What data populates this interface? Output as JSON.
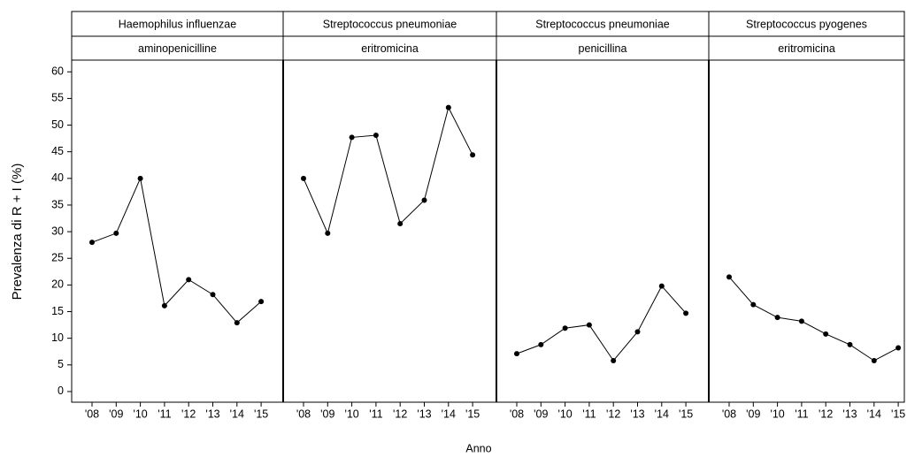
{
  "chart_data": [
    {
      "type": "line",
      "title": "Haemophilus influenzae",
      "subtitle": "aminopenicilline",
      "y_label": "Prevalenza di R + I (%)",
      "x_label": "Anno",
      "categories": [
        "'08",
        "'09",
        "'10",
        "'11",
        "'12",
        "'13",
        "'14",
        "'15"
      ],
      "values": [
        28,
        29.7,
        40,
        16.1,
        21,
        18.2,
        12.9,
        16.9
      ],
      "ylim": [
        -2,
        62.2
      ],
      "yticks": [
        0,
        5,
        10,
        15,
        20,
        25,
        30,
        35,
        40,
        45,
        50,
        55,
        60
      ],
      "color": "#000000"
    },
    {
      "type": "line",
      "title": "Streptococcus pneumoniae",
      "subtitle": "eritromicina",
      "categories": [
        "'08",
        "'09",
        "'10",
        "'11",
        "'12",
        "'13",
        "'14",
        "'15"
      ],
      "values": [
        40,
        29.7,
        47.7,
        48.1,
        31.5,
        35.9,
        53.3,
        44.4
      ],
      "color": "#000000"
    },
    {
      "type": "line",
      "title": "Streptococcus pneumoniae",
      "subtitle": "penicillina",
      "categories": [
        "'08",
        "'09",
        "'10",
        "'11",
        "'12",
        "'13",
        "'14",
        "'15"
      ],
      "values": [
        7.1,
        8.8,
        11.9,
        12.5,
        5.8,
        11.2,
        19.8,
        14.7
      ],
      "color": "#000000"
    },
    {
      "type": "line",
      "title": "Streptococcus pyogenes",
      "subtitle": "eritromicina",
      "categories": [
        "'08",
        "'09",
        "'10",
        "'11",
        "'12",
        "'13",
        "'14",
        "'15"
      ],
      "values": [
        21.5,
        16.3,
        13.9,
        13.2,
        10.8,
        8.8,
        5.8,
        8.2
      ],
      "color": "#000000"
    }
  ]
}
